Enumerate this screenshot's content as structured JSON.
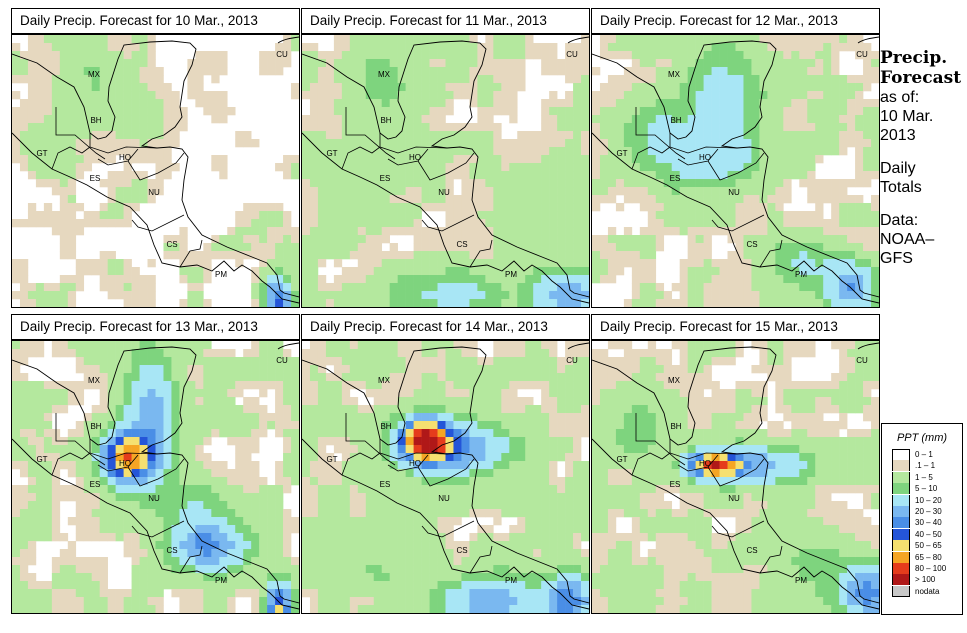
{
  "panels": [
    {
      "title": "Daily Precip. Forecast for  10 Mar., 2013"
    },
    {
      "title": "Daily Precip. Forecast for  11 Mar., 2013"
    },
    {
      "title": "Daily Precip. Forecast for  12 Mar., 2013"
    },
    {
      "title": "Daily Precip. Forecast for  13 Mar., 2013"
    },
    {
      "title": "Daily Precip. Forecast for  14 Mar., 2013"
    },
    {
      "title": "Daily Precip. Forecast for  15 Mar., 2013"
    }
  ],
  "country_labels": [
    "MX",
    "BH",
    "GT",
    "HO",
    "ES",
    "NU",
    "CS",
    "PM",
    "CU"
  ],
  "side_text": {
    "heading_line1": "Precip.",
    "heading_line2": "Forecast",
    "asof_line1": "as of:",
    "asof_line2": "10 Mar.",
    "asof_line3": "2013",
    "daily_line1": "Daily",
    "daily_line2": "Totals",
    "data_line1": "Data:",
    "data_line2": "NOAA–",
    "data_line3": "GFS"
  },
  "legend": {
    "title": "PPT (mm)",
    "items": [
      {
        "label": "0 – 1",
        "color": "#ffffff"
      },
      {
        "label": ".1 – 1",
        "color": "#e6d8bf"
      },
      {
        "label": "1 – 5",
        "color": "#b4e89e"
      },
      {
        "label": "5 – 10",
        "color": "#7ed47e"
      },
      {
        "label": "10 – 20",
        "color": "#a8e6f5"
      },
      {
        "label": "20 – 30",
        "color": "#7ab8f0"
      },
      {
        "label": "30 – 40",
        "color": "#4a8ee6"
      },
      {
        "label": "40 – 50",
        "color": "#2455d8"
      },
      {
        "label": "50 – 65",
        "color": "#f5e070"
      },
      {
        "label": "65 – 80",
        "color": "#f5a524"
      },
      {
        "label": "80 – 100",
        "color": "#e53c1c"
      },
      {
        "label": "> 100",
        "color": "#b01818"
      },
      {
        "label": "nodata",
        "color": "#c8c8c8"
      }
    ]
  }
}
